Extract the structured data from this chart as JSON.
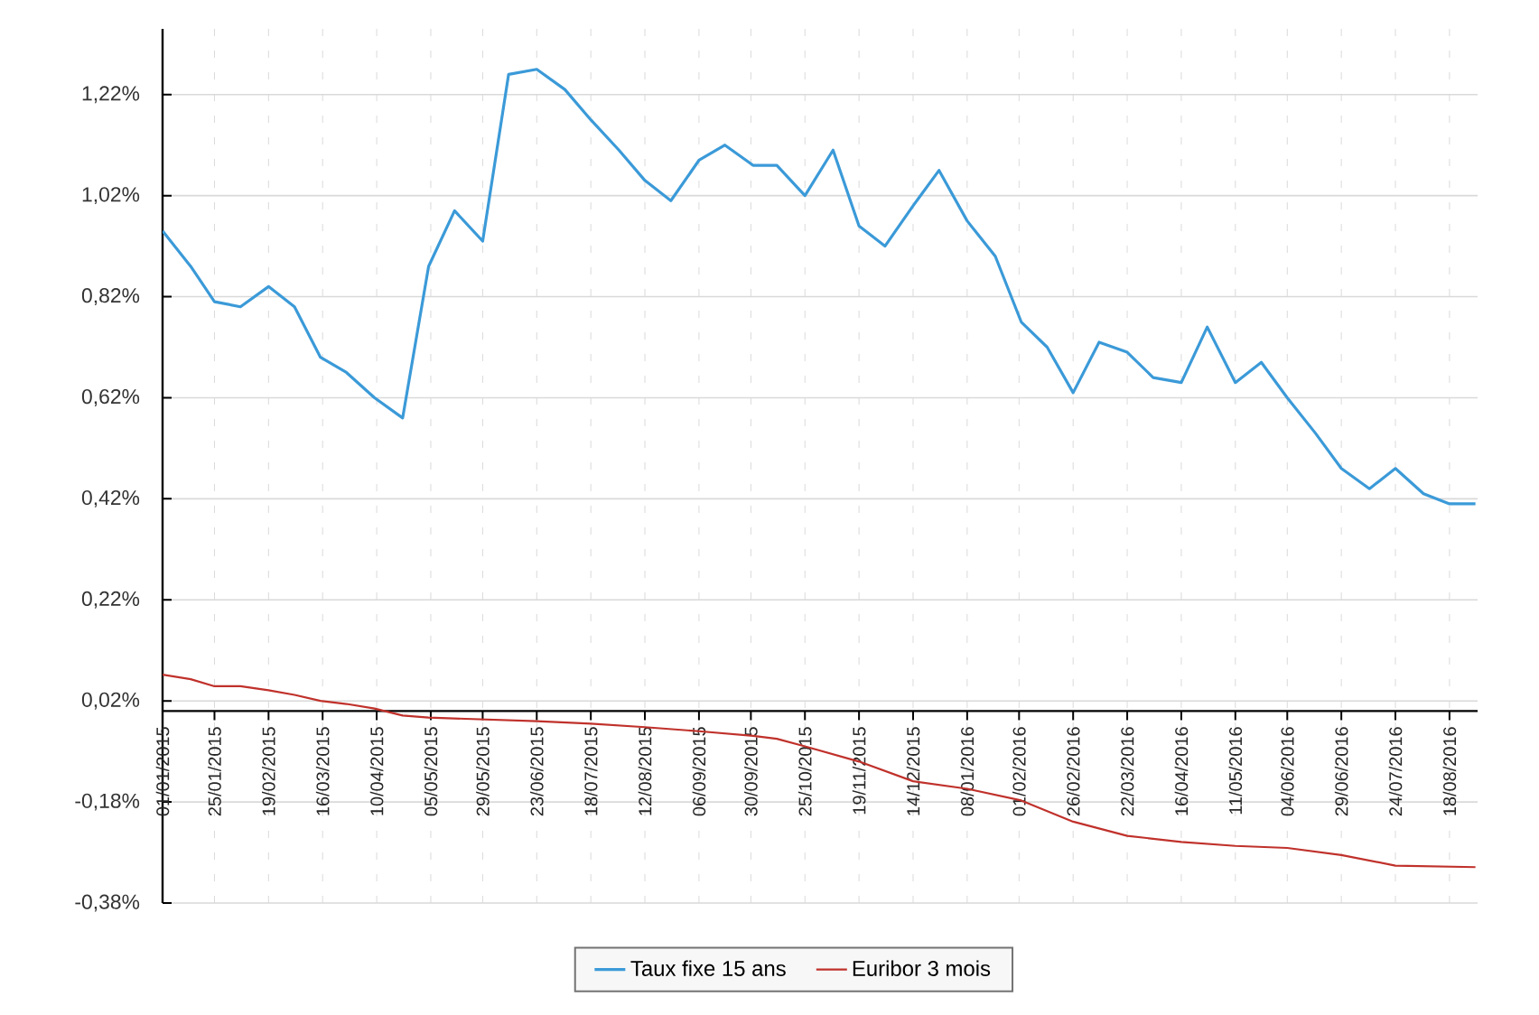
{
  "chart_data": {
    "type": "line",
    "xlim": [
      "2015-01-01",
      "2016-08-31"
    ],
    "xticks": [
      {
        "value": "2015-01-01",
        "label": "01/01/2015"
      },
      {
        "value": "2015-01-25",
        "label": "25/01/2015"
      },
      {
        "value": "2015-02-19",
        "label": "19/02/2015"
      },
      {
        "value": "2015-03-16",
        "label": "16/03/2015"
      },
      {
        "value": "2015-04-10",
        "label": "10/04/2015"
      },
      {
        "value": "2015-05-05",
        "label": "05/05/2015"
      },
      {
        "value": "2015-05-29",
        "label": "29/05/2015"
      },
      {
        "value": "2015-06-23",
        "label": "23/06/2015"
      },
      {
        "value": "2015-07-18",
        "label": "18/07/2015"
      },
      {
        "value": "2015-08-12",
        "label": "12/08/2015"
      },
      {
        "value": "2015-09-06",
        "label": "06/09/2015"
      },
      {
        "value": "2015-09-30",
        "label": "30/09/2015"
      },
      {
        "value": "2015-10-25",
        "label": "25/10/2015"
      },
      {
        "value": "2015-11-19",
        "label": "19/11/2015"
      },
      {
        "value": "2015-12-14",
        "label": "14/12/2015"
      },
      {
        "value": "2016-01-08",
        "label": "08/01/2016"
      },
      {
        "value": "2016-02-01",
        "label": "01/02/2016"
      },
      {
        "value": "2016-02-26",
        "label": "26/02/2016"
      },
      {
        "value": "2016-03-22",
        "label": "22/03/2016"
      },
      {
        "value": "2016-04-16",
        "label": "16/04/2016"
      },
      {
        "value": "2016-05-11",
        "label": "11/05/2016"
      },
      {
        "value": "2016-06-04",
        "label": "04/06/2016"
      },
      {
        "value": "2016-06-29",
        "label": "29/06/2016"
      },
      {
        "value": "2016-07-24",
        "label": "24/07/2016"
      },
      {
        "value": "2016-08-18",
        "label": "18/08/2016"
      }
    ],
    "ylim": [
      -0.38,
      1.35
    ],
    "yticks": [
      {
        "value": -0.38,
        "label": "-0,38%"
      },
      {
        "value": -0.18,
        "label": "-0,18%"
      },
      {
        "value": 0.02,
        "label": "0,02%"
      },
      {
        "value": 0.22,
        "label": "0,22%"
      },
      {
        "value": 0.42,
        "label": "0,42%"
      },
      {
        "value": 0.62,
        "label": "0,62%"
      },
      {
        "value": 0.82,
        "label": "0,82%"
      },
      {
        "value": 1.02,
        "label": "1,02%"
      },
      {
        "value": 1.22,
        "label": "1,22%"
      }
    ],
    "grid": true,
    "legend": "bottom",
    "series": [
      {
        "name": "Taux fixe 15 ans",
        "color": "#3b9ad8",
        "x": [
          "2015-01-01",
          "2015-01-14",
          "2015-01-25",
          "2015-02-06",
          "2015-02-19",
          "2015-03-03",
          "2015-03-15",
          "2015-03-27",
          "2015-04-09",
          "2015-04-22",
          "2015-05-04",
          "2015-05-16",
          "2015-05-29",
          "2015-06-10",
          "2015-06-23",
          "2015-07-06",
          "2015-07-18",
          "2015-07-31",
          "2015-08-12",
          "2015-08-24",
          "2015-09-06",
          "2015-09-18",
          "2015-10-01",
          "2015-10-12",
          "2015-10-25",
          "2015-11-07",
          "2015-11-19",
          "2015-12-01",
          "2015-12-14",
          "2015-12-26",
          "2016-01-08",
          "2016-01-21",
          "2016-02-02",
          "2016-02-14",
          "2016-02-26",
          "2016-03-09",
          "2016-03-22",
          "2016-04-03",
          "2016-04-16",
          "2016-04-28",
          "2016-05-11",
          "2016-05-23",
          "2016-06-04",
          "2016-06-17",
          "2016-06-29",
          "2016-07-12",
          "2016-07-24",
          "2016-08-06",
          "2016-08-18",
          "2016-08-30"
        ],
        "values": [
          0.95,
          0.88,
          0.81,
          0.8,
          0.84,
          0.8,
          0.7,
          0.67,
          0.62,
          0.58,
          0.88,
          0.99,
          0.93,
          1.26,
          1.27,
          1.23,
          1.17,
          1.11,
          1.05,
          1.01,
          1.09,
          1.12,
          1.08,
          1.08,
          1.02,
          1.11,
          0.96,
          0.92,
          1.0,
          1.07,
          0.97,
          0.9,
          0.77,
          0.72,
          0.63,
          0.73,
          0.71,
          0.66,
          0.65,
          0.76,
          0.65,
          0.69,
          0.62,
          0.55,
          0.48,
          0.44,
          0.48,
          0.43,
          0.41,
          0.41
        ]
      },
      {
        "name": "Euribor 3 mois",
        "color": "#c0312b",
        "x": [
          "2015-01-01",
          "2015-01-14",
          "2015-01-25",
          "2015-02-06",
          "2015-02-19",
          "2015-03-03",
          "2015-03-15",
          "2015-03-27",
          "2015-04-09",
          "2015-04-22",
          "2015-05-04",
          "2015-06-23",
          "2015-07-18",
          "2015-08-12",
          "2015-09-06",
          "2015-10-01",
          "2015-10-12",
          "2015-10-25",
          "2015-11-19",
          "2015-12-14",
          "2016-01-08",
          "2016-02-02",
          "2016-02-26",
          "2016-03-22",
          "2016-04-16",
          "2016-05-11",
          "2016-06-04",
          "2016-06-29",
          "2016-07-24",
          "2016-08-30"
        ],
        "values": [
          0.072,
          0.063,
          0.049,
          0.049,
          0.041,
          0.032,
          0.02,
          0.014,
          0.005,
          -0.009,
          -0.013,
          -0.02,
          -0.025,
          -0.032,
          -0.04,
          -0.049,
          -0.055,
          -0.07,
          -0.1,
          -0.139,
          -0.154,
          -0.177,
          -0.219,
          -0.247,
          -0.259,
          -0.267,
          -0.271,
          -0.285,
          -0.306,
          -0.309
        ]
      }
    ]
  }
}
